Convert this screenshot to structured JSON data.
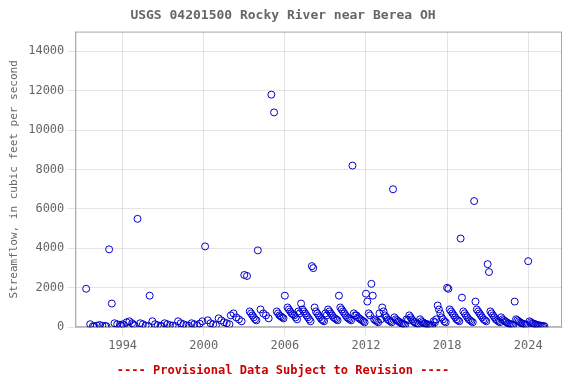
{
  "chart_data": {
    "type": "scatter",
    "title": "USGS 04201500 Rocky River near Berea OH",
    "ylabel": "Streamflow, in cubic feet per second",
    "annotations": [
      {
        "text": "---- Provisional Data Subject to Revision ----",
        "color": "#cc0000"
      }
    ],
    "xlim": [
      1990.5,
      2026.5
    ],
    "ylim": [
      0,
      15000
    ],
    "xticks": [
      1994,
      2000,
      2006,
      2012,
      2018,
      2024
    ],
    "yticks": [
      0,
      2000,
      4000,
      6000,
      8000,
      10000,
      12000,
      14000
    ],
    "grid": true,
    "color": "#0000cc",
    "marker": "open circle",
    "x": [
      1991.3,
      1991.6,
      1991.8,
      1991.9,
      1992.1,
      1992.3,
      1992.5,
      1992.7,
      1992.8,
      1993.0,
      1993.2,
      1993.4,
      1993.6,
      1993.8,
      1993.9,
      1994.0,
      1994.1,
      1994.3,
      1994.5,
      1994.7,
      1994.8,
      1994.9,
      1995.1,
      1995.3,
      1995.5,
      1995.7,
      1995.9,
      1996.0,
      1996.2,
      1996.4,
      1996.6,
      1996.8,
      1996.9,
      1997.1,
      1997.3,
      1997.5,
      1997.7,
      1997.9,
      1998.1,
      1998.3,
      1998.5,
      1998.7,
      1998.9,
      1999.1,
      1999.3,
      1999.5,
      1999.7,
      1999.9,
      2000.1,
      2000.3,
      2000.5,
      2000.7,
      2000.9,
      2001.1,
      2001.3,
      2001.5,
      2001.7,
      2001.9,
      2002.0,
      2002.2,
      2002.4,
      2002.6,
      2002.8,
      2003.0,
      2003.2,
      2003.4,
      2003.5,
      2003.6,
      2003.7,
      2003.8,
      2003.9,
      2004.0,
      2004.2,
      2004.4,
      2004.6,
      2004.8,
      2005.0,
      2005.2,
      2005.4,
      2005.5,
      2005.6,
      2005.7,
      2005.8,
      2005.9,
      2006.0,
      2006.2,
      2006.3,
      2006.4,
      2006.5,
      2006.6,
      2006.7,
      2006.8,
      2006.9,
      2007.0,
      2007.1,
      2007.2,
      2007.3,
      2007.4,
      2007.5,
      2007.6,
      2007.7,
      2007.8,
      2007.9,
      2008.0,
      2008.1,
      2008.2,
      2008.3,
      2008.4,
      2008.5,
      2008.6,
      2008.7,
      2008.8,
      2008.9,
      2009.0,
      2009.1,
      2009.2,
      2009.3,
      2009.4,
      2009.5,
      2009.6,
      2009.7,
      2009.8,
      2009.9,
      2010.0,
      2010.1,
      2010.2,
      2010.3,
      2010.4,
      2010.5,
      2010.6,
      2010.7,
      2010.8,
      2010.9,
      2011.0,
      2011.1,
      2011.2,
      2011.3,
      2011.4,
      2011.5,
      2011.6,
      2011.7,
      2011.8,
      2011.9,
      2012.0,
      2012.1,
      2012.2,
      2012.3,
      2012.4,
      2012.5,
      2012.6,
      2012.7,
      2012.8,
      2012.9,
      2013.0,
      2013.1,
      2013.2,
      2013.3,
      2013.4,
      2013.5,
      2013.6,
      2013.7,
      2013.8,
      2013.9,
      2014.0,
      2014.1,
      2014.2,
      2014.3,
      2014.4,
      2014.5,
      2014.6,
      2014.7,
      2014.8,
      2014.9,
      2015.0,
      2015.1,
      2015.2,
      2015.3,
      2015.4,
      2015.5,
      2015.6,
      2015.7,
      2015.8,
      2015.9,
      2016.0,
      2016.1,
      2016.2,
      2016.3,
      2016.4,
      2016.5,
      2016.6,
      2016.7,
      2016.8,
      2016.9,
      2017.0,
      2017.1,
      2017.2,
      2017.3,
      2017.4,
      2017.5,
      2017.6,
      2017.7,
      2017.8,
      2017.9,
      2018.0,
      2018.1,
      2018.2,
      2018.3,
      2018.4,
      2018.5,
      2018.6,
      2018.7,
      2018.8,
      2018.9,
      2019.0,
      2019.1,
      2019.2,
      2019.3,
      2019.4,
      2019.5,
      2019.6,
      2019.7,
      2019.8,
      2019.9,
      2020.0,
      2020.1,
      2020.2,
      2020.3,
      2020.4,
      2020.5,
      2020.6,
      2020.7,
      2020.8,
      2020.9,
      2021.0,
      2021.1,
      2021.2,
      2021.3,
      2021.4,
      2021.5,
      2021.6,
      2021.7,
      2021.8,
      2021.9,
      2022.0,
      2022.1,
      2022.2,
      2022.3,
      2022.4,
      2022.5,
      2022.6,
      2022.7,
      2022.8,
      2022.9,
      2023.0,
      2023.1,
      2023.2,
      2023.3,
      2023.4,
      2023.5,
      2023.6,
      2023.7,
      2023.8,
      2023.9,
      2024.0,
      2024.1,
      2024.2,
      2024.3,
      2024.4,
      2024.5,
      2024.6,
      2024.7,
      2024.8,
      2024.9,
      2025.0,
      2025.1,
      2025.2
    ],
    "values": [
      1950,
      150,
      50,
      40,
      80,
      110,
      70,
      60,
      50,
      3950,
      1200,
      200,
      150,
      120,
      80,
      150,
      100,
      250,
      300,
      200,
      130,
      80,
      5500,
      200,
      150,
      80,
      60,
      1600,
      300,
      150,
      100,
      70,
      50,
      200,
      150,
      100,
      80,
      60,
      300,
      200,
      150,
      100,
      70,
      200,
      150,
      100,
      180,
      300,
      4100,
      350,
      200,
      150,
      100,
      450,
      350,
      250,
      200,
      150,
      600,
      700,
      500,
      400,
      300,
      2650,
      2600,
      800,
      700,
      600,
      500,
      400,
      350,
      3900,
      900,
      700,
      600,
      450,
      11800,
      10900,
      800,
      700,
      600,
      550,
      500,
      450,
      1600,
      1000,
      900,
      800,
      700,
      650,
      600,
      500,
      400,
      800,
      700,
      1200,
      900,
      800,
      700,
      600,
      500,
      400,
      300,
      3100,
      3000,
      1000,
      800,
      700,
      600,
      500,
      400,
      350,
      300,
      700,
      600,
      900,
      800,
      700,
      600,
      500,
      450,
      400,
      350,
      1600,
      1000,
      900,
      800,
      700,
      600,
      500,
      450,
      400,
      350,
      8200,
      700,
      600,
      600,
      500,
      450,
      400,
      350,
      300,
      250,
      1700,
      1300,
      700,
      600,
      2200,
      1600,
      400,
      350,
      300,
      250,
      700,
      400,
      1000,
      800,
      600,
      500,
      400,
      350,
      300,
      250,
      7000,
      500,
      400,
      350,
      300,
      250,
      200,
      180,
      150,
      130,
      400,
      350,
      600,
      500,
      400,
      300,
      250,
      200,
      180,
      150,
      400,
      300,
      250,
      200,
      180,
      150,
      130,
      110,
      100,
      80,
      300,
      250,
      400,
      1100,
      900,
      700,
      500,
      400,
      300,
      250,
      2000,
      1950,
      900,
      800,
      700,
      600,
      500,
      400,
      350,
      300,
      4500,
      1500,
      800,
      700,
      600,
      500,
      400,
      350,
      300,
      250,
      6400,
      1300,
      900,
      800,
      700,
      600,
      500,
      400,
      350,
      300,
      3200,
      2800,
      800,
      700,
      600,
      500,
      400,
      350,
      300,
      250,
      500,
      400,
      350,
      300,
      250,
      200,
      180,
      150,
      130,
      110,
      1300,
      400,
      350,
      300,
      250,
      200,
      180,
      150,
      130,
      110,
      3350,
      300,
      250,
      200,
      180,
      150,
      130,
      110,
      90,
      80,
      70,
      60,
      50
    ]
  }
}
